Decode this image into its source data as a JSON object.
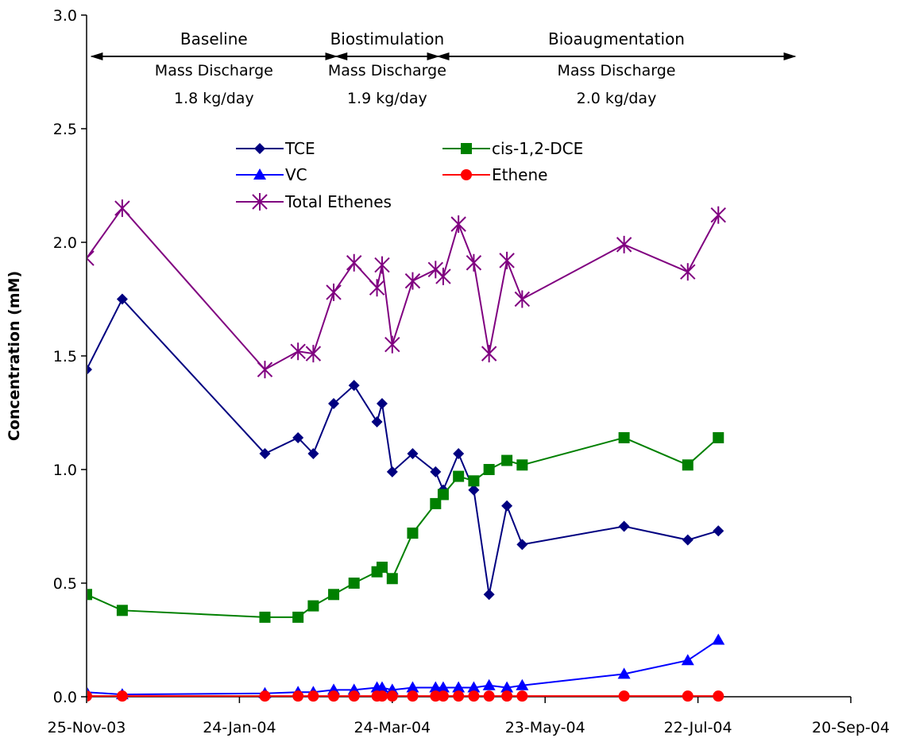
{
  "chart_data": {
    "type": "line",
    "title": "",
    "xlabel": "",
    "ylabel": "Concentration (mM)",
    "ylim": [
      0,
      3.0
    ],
    "x_ticks": [
      "25-Nov-03",
      "24-Jan-04",
      "24-Mar-04",
      "23-May-04",
      "22-Jul-04",
      "20-Sep-04"
    ],
    "y_ticks": [
      "0.0",
      "0.5",
      "1.0",
      "1.5",
      "2.0",
      "2.5",
      "3.0"
    ],
    "xlim_days": [
      0,
      300
    ],
    "grid": false,
    "legend_position": "top-center",
    "phases": [
      {
        "name": "Baseline",
        "label": "Mass Discharge",
        "rate": "1.8 kg/day",
        "start_day": 2,
        "end_day": 98
      },
      {
        "name": "Biostimulation",
        "label": "Mass Discharge",
        "rate": "1.9 kg/day",
        "start_day": 98,
        "end_day": 138
      },
      {
        "name": "Bioaugmentation",
        "label": "Mass Discharge",
        "rate": "2.0 kg/day",
        "start_day": 138,
        "end_day": 278
      }
    ],
    "series": [
      {
        "name": "TCE",
        "color": "#000080",
        "marker": "diamond",
        "points": [
          [
            -4,
            1.49
          ],
          [
            0,
            1.44
          ],
          [
            14,
            1.75
          ],
          [
            70,
            1.07
          ],
          [
            83,
            1.14
          ],
          [
            89,
            1.07
          ],
          [
            97,
            1.29
          ],
          [
            105,
            1.37
          ],
          [
            114,
            1.21
          ],
          [
            116,
            1.29
          ],
          [
            120,
            0.99
          ],
          [
            128,
            1.07
          ],
          [
            137,
            0.99
          ],
          [
            140,
            0.91
          ],
          [
            146,
            1.07
          ],
          [
            152,
            0.91
          ],
          [
            158,
            0.45
          ],
          [
            165,
            0.84
          ],
          [
            171,
            0.67
          ],
          [
            211,
            0.75
          ],
          [
            236,
            0.69
          ],
          [
            248,
            0.73
          ]
        ]
      },
      {
        "name": "cis-1,2-DCE",
        "color": "#008000",
        "marker": "square",
        "points": [
          [
            -4,
            0.46
          ],
          [
            0,
            0.45
          ],
          [
            14,
            0.38
          ],
          [
            70,
            0.35
          ],
          [
            83,
            0.35
          ],
          [
            89,
            0.4
          ],
          [
            97,
            0.45
          ],
          [
            105,
            0.5
          ],
          [
            114,
            0.55
          ],
          [
            116,
            0.57
          ],
          [
            120,
            0.52
          ],
          [
            128,
            0.72
          ],
          [
            137,
            0.85
          ],
          [
            140,
            0.89
          ],
          [
            146,
            0.97
          ],
          [
            152,
            0.95
          ],
          [
            158,
            1.0
          ],
          [
            165,
            1.04
          ],
          [
            171,
            1.02
          ],
          [
            211,
            1.14
          ],
          [
            236,
            1.02
          ],
          [
            248,
            1.14
          ]
        ]
      },
      {
        "name": "VC",
        "color": "#0000ff",
        "marker": "triangle",
        "points": [
          [
            -4,
            0.02
          ],
          [
            0,
            0.02
          ],
          [
            14,
            0.01
          ],
          [
            70,
            0.015
          ],
          [
            83,
            0.02
          ],
          [
            89,
            0.02
          ],
          [
            97,
            0.03
          ],
          [
            105,
            0.03
          ],
          [
            114,
            0.04
          ],
          [
            116,
            0.04
          ],
          [
            120,
            0.03
          ],
          [
            128,
            0.04
          ],
          [
            137,
            0.04
          ],
          [
            140,
            0.04
          ],
          [
            146,
            0.04
          ],
          [
            152,
            0.04
          ],
          [
            158,
            0.05
          ],
          [
            165,
            0.04
          ],
          [
            171,
            0.05
          ],
          [
            211,
            0.1
          ],
          [
            236,
            0.16
          ],
          [
            248,
            0.25
          ]
        ]
      },
      {
        "name": "Ethene",
        "color": "#ff0000",
        "marker": "circle",
        "points": [
          [
            -4,
            0.003
          ],
          [
            0,
            0.003
          ],
          [
            14,
            0.003
          ],
          [
            70,
            0.003
          ],
          [
            83,
            0.003
          ],
          [
            89,
            0.003
          ],
          [
            97,
            0.003
          ],
          [
            105,
            0.003
          ],
          [
            114,
            0.003
          ],
          [
            116,
            0.003
          ],
          [
            120,
            0.003
          ],
          [
            128,
            0.003
          ],
          [
            137,
            0.003
          ],
          [
            140,
            0.003
          ],
          [
            146,
            0.003
          ],
          [
            152,
            0.003
          ],
          [
            158,
            0.003
          ],
          [
            165,
            0.003
          ],
          [
            171,
            0.003
          ],
          [
            211,
            0.003
          ],
          [
            236,
            0.003
          ],
          [
            248,
            0.003
          ]
        ]
      },
      {
        "name": "Total Ethenes",
        "color": "#800080",
        "marker": "star",
        "points": [
          [
            -4,
            1.95
          ],
          [
            0,
            1.93
          ],
          [
            14,
            2.15
          ],
          [
            70,
            1.44
          ],
          [
            83,
            1.52
          ],
          [
            89,
            1.51
          ],
          [
            97,
            1.78
          ],
          [
            105,
            1.91
          ],
          [
            114,
            1.8
          ],
          [
            116,
            1.9
          ],
          [
            120,
            1.55
          ],
          [
            128,
            1.83
          ],
          [
            137,
            1.88
          ],
          [
            140,
            1.85
          ],
          [
            146,
            2.08
          ],
          [
            152,
            1.91
          ],
          [
            158,
            1.51
          ],
          [
            165,
            1.92
          ],
          [
            171,
            1.75
          ],
          [
            211,
            1.99
          ],
          [
            236,
            1.87
          ],
          [
            248,
            2.12
          ]
        ]
      }
    ]
  }
}
